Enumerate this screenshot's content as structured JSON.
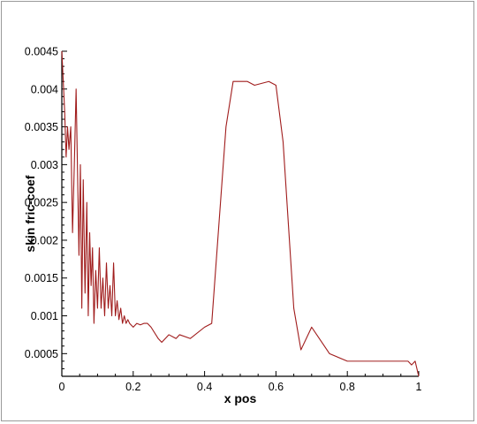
{
  "chart_data": {
    "type": "line",
    "title": "",
    "xlabel": "x pos",
    "ylabel": "skin fric-coef",
    "xlim": [
      0,
      1
    ],
    "ylim": [
      0.0002,
      0.0045
    ],
    "xticks": [
      0,
      0.2,
      0.4,
      0.6,
      0.8,
      1
    ],
    "xtick_labels": [
      "0",
      "0.2",
      "0.4",
      "0.6",
      "0.8",
      "1"
    ],
    "yticks": [
      0.0005,
      0.001,
      0.0015,
      0.002,
      0.0025,
      0.003,
      0.0035,
      0.004,
      0.0045
    ],
    "ytick_labels": [
      "0.0005",
      "0.001",
      "0.0015",
      "0.002",
      "0.0025",
      "0.003",
      "0.0035",
      "0.004",
      "0.0045"
    ],
    "grid": false,
    "legend": "none",
    "line_color": "#a01c1c",
    "series": [
      {
        "x": [
          0.0,
          0.004,
          0.008,
          0.012,
          0.016,
          0.02,
          0.025,
          0.03,
          0.035,
          0.04,
          0.044,
          0.048,
          0.052,
          0.056,
          0.06,
          0.065,
          0.07,
          0.074,
          0.078,
          0.082,
          0.086,
          0.09,
          0.095,
          0.1,
          0.105,
          0.11,
          0.115,
          0.12,
          0.125,
          0.13,
          0.135,
          0.14,
          0.145,
          0.15,
          0.155,
          0.16,
          0.165,
          0.17,
          0.175,
          0.18,
          0.185,
          0.19,
          0.2,
          0.21,
          0.22,
          0.23,
          0.24,
          0.25,
          0.27,
          0.28,
          0.3,
          0.32,
          0.33,
          0.36,
          0.4,
          0.42,
          0.46,
          0.48,
          0.52,
          0.54,
          0.58,
          0.6,
          0.62,
          0.65,
          0.67,
          0.7,
          0.75,
          0.8,
          0.85,
          0.9,
          0.95,
          0.97,
          0.98,
          0.99,
          1.0
        ],
        "values": [
          0.0045,
          0.0041,
          0.0037,
          0.0031,
          0.0035,
          0.0032,
          0.0035,
          0.0021,
          0.003,
          0.004,
          0.0029,
          0.0018,
          0.003,
          0.0011,
          0.0028,
          0.0013,
          0.0025,
          0.001,
          0.0021,
          0.0014,
          0.0019,
          0.0009,
          0.0016,
          0.0011,
          0.0019,
          0.0011,
          0.0015,
          0.001,
          0.0017,
          0.0011,
          0.0014,
          0.001,
          0.0017,
          0.001,
          0.0012,
          0.00095,
          0.0011,
          0.0009,
          0.001,
          0.0009,
          0.00095,
          0.0009,
          0.00085,
          0.0009,
          0.00088,
          0.0009,
          0.0009,
          0.00085,
          0.0007,
          0.00065,
          0.00075,
          0.0007,
          0.00075,
          0.0007,
          0.00085,
          0.0009,
          0.0035,
          0.0041,
          0.0041,
          0.00405,
          0.0041,
          0.00405,
          0.0033,
          0.0011,
          0.00055,
          0.00085,
          0.0005,
          0.0004,
          0.0004,
          0.0004,
          0.0004,
          0.0004,
          0.00035,
          0.0004,
          0.0002
        ]
      }
    ]
  }
}
